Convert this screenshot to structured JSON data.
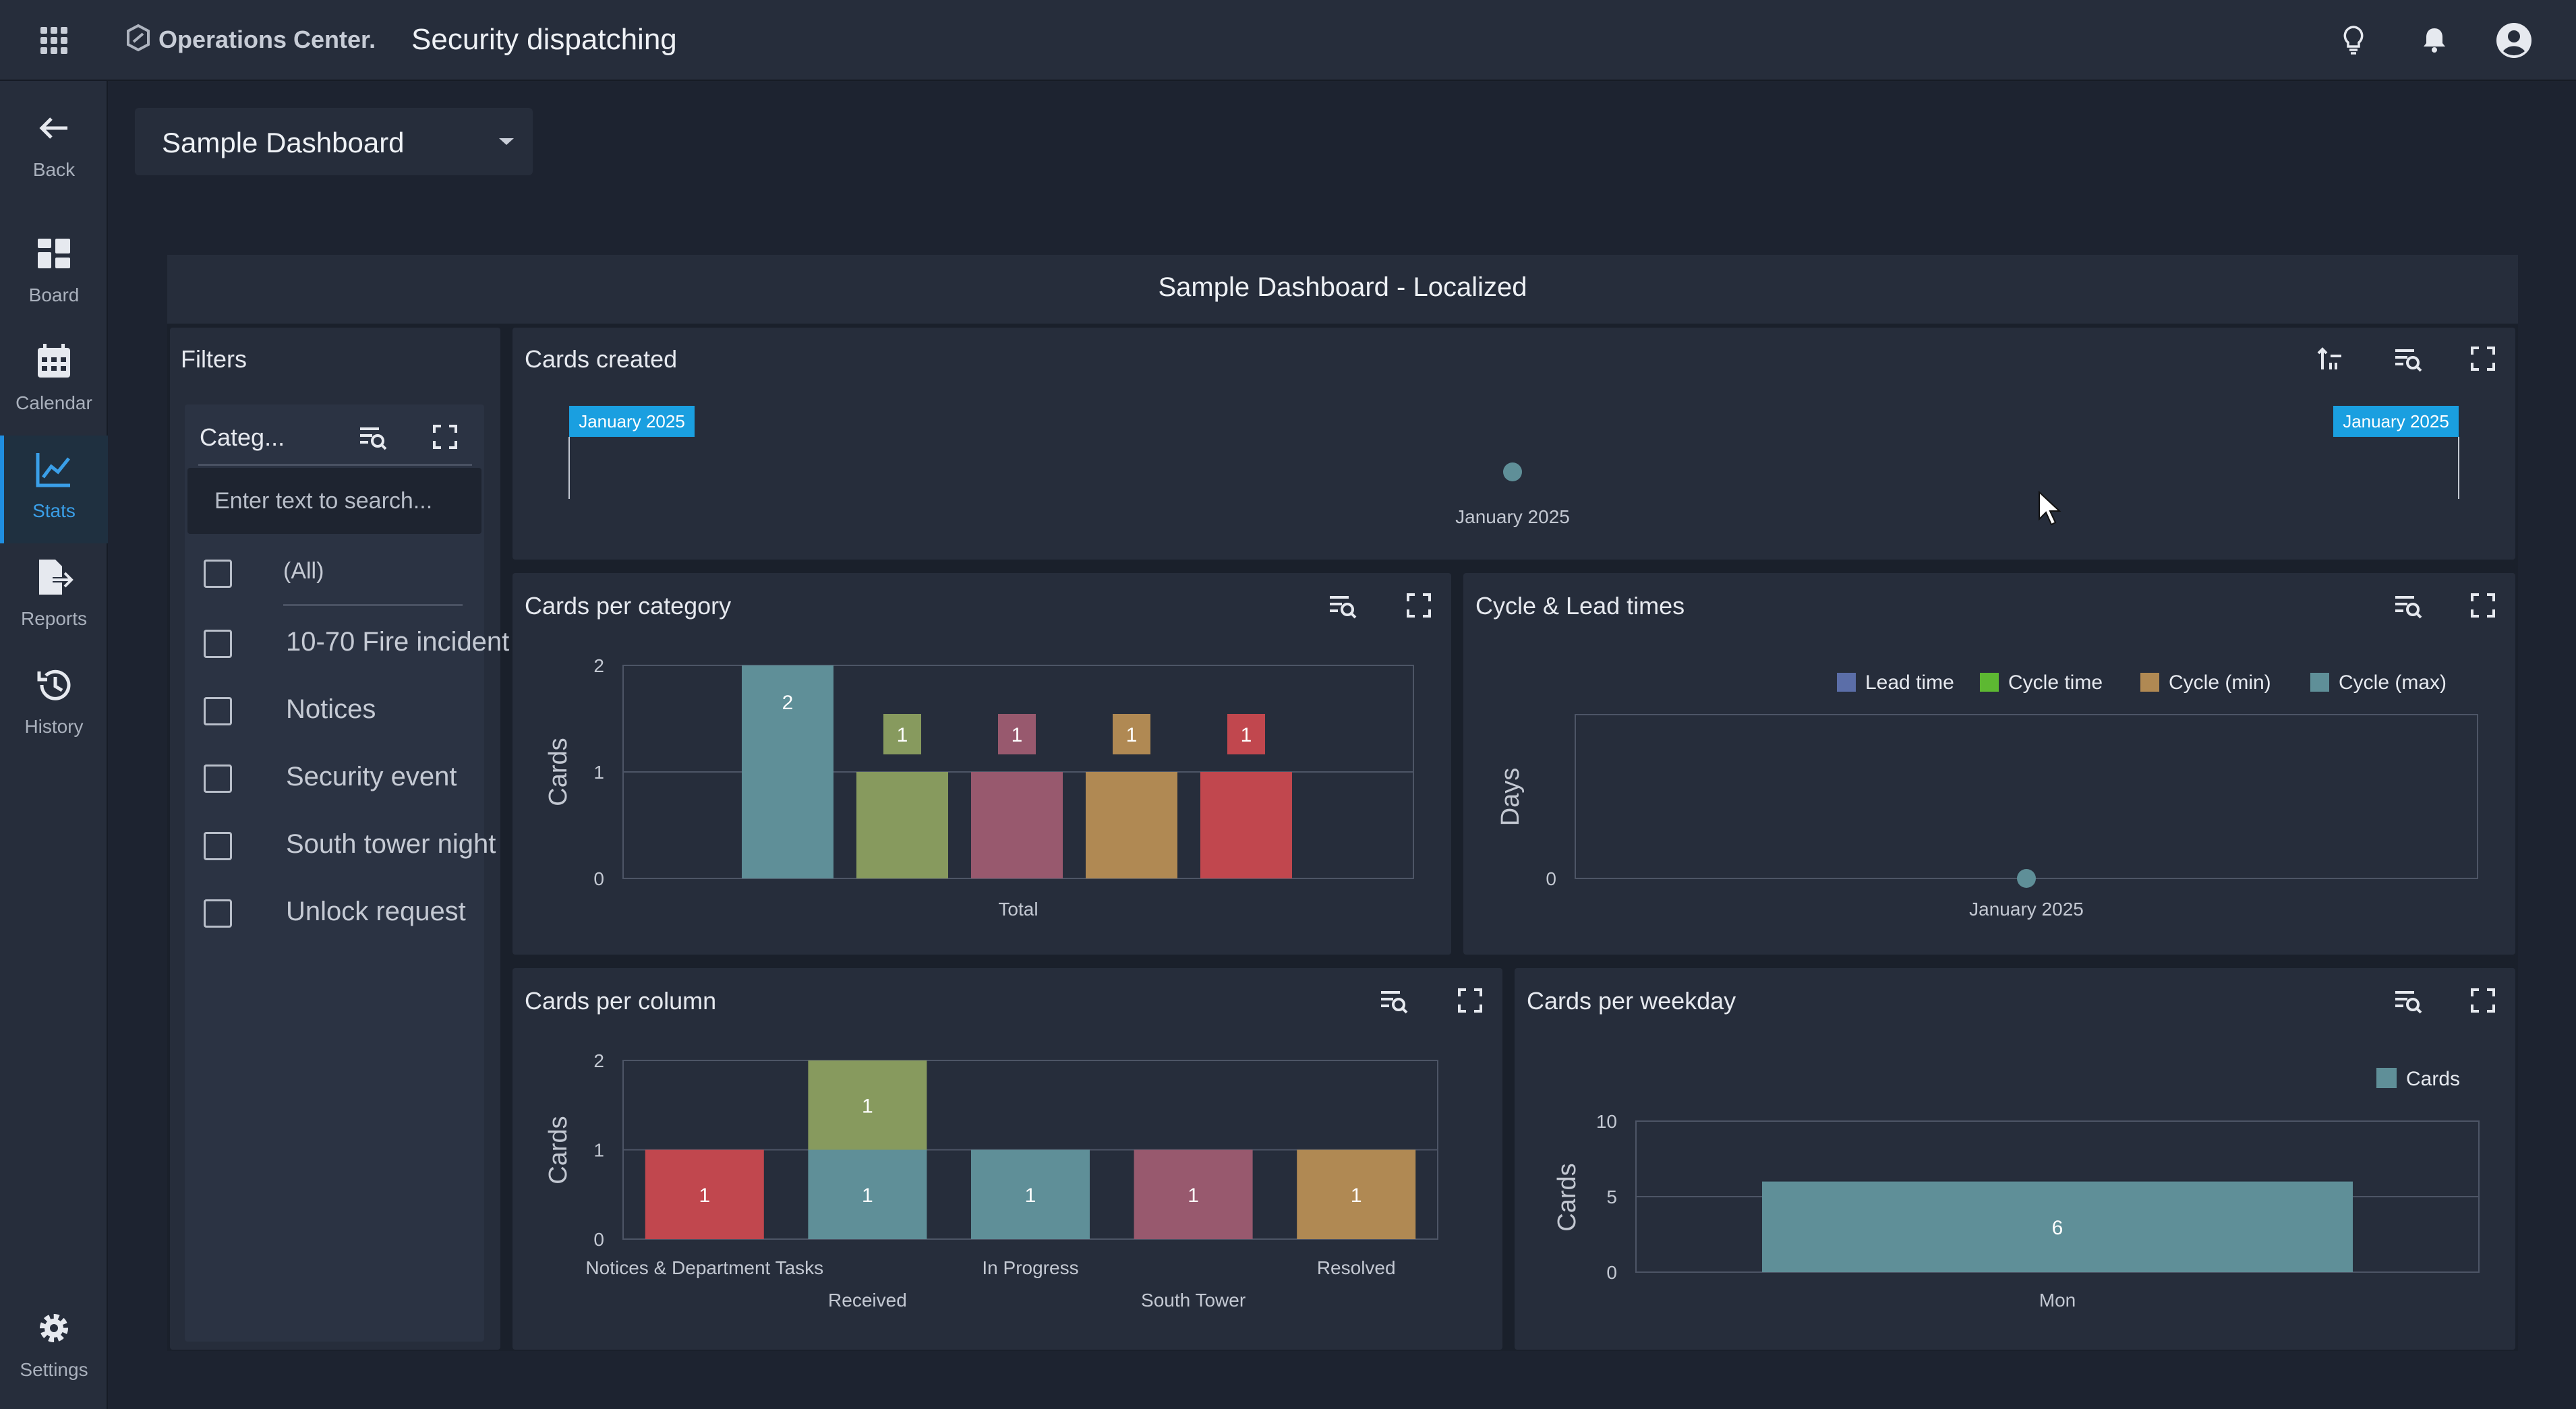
{
  "header": {
    "brand": "Operations Center.",
    "title": "Security dispatching"
  },
  "nav": {
    "back": "Back",
    "board": "Board",
    "calendar": "Calendar",
    "stats": "Stats",
    "reports": "Reports",
    "history": "History",
    "settings": "Settings"
  },
  "selector": {
    "value": "Sample Dashboard"
  },
  "dashboard": {
    "title": "Sample Dashboard - Localized"
  },
  "filters": {
    "title": "Filters",
    "box_title": "Categ...",
    "search_placeholder": "Enter text to search...",
    "items": [
      {
        "label": "(All)",
        "checked": false
      },
      {
        "label": "10-70 Fire incident",
        "checked": false
      },
      {
        "label": "Notices",
        "checked": false
      },
      {
        "label": "Security event",
        "checked": false
      },
      {
        "label": "South tower night",
        "checked": false
      },
      {
        "label": "Unlock request",
        "checked": false
      }
    ]
  },
  "panels": {
    "cards_created": "Cards created",
    "cards_per_category": "Cards per category",
    "cycle_lead": "Cycle & Lead times",
    "cards_per_column": "Cards per column",
    "cards_per_weekday": "Cards per weekday"
  },
  "colors": {
    "teal": "#5f8f98",
    "olive": "#879a5e",
    "mauve": "#98596e",
    "ochre": "#b08953",
    "red": "#c1474e",
    "blue": "#5b6ea8",
    "green": "#5db832",
    "accent": "#1a9fe0"
  },
  "chart_data": [
    {
      "id": "cards_created",
      "type": "scatter",
      "x": [
        "January 2025"
      ],
      "values": [
        1
      ],
      "range_start_label": "January 2025",
      "range_end_label": "January 2025"
    },
    {
      "id": "cards_per_category",
      "type": "bar",
      "categories": [
        "Total"
      ],
      "ylabel": "Cards",
      "ylim": [
        0,
        2
      ],
      "yticks": [
        0,
        1,
        2
      ],
      "series": [
        {
          "value": 2,
          "color": "#5f8f98"
        },
        {
          "value": 1,
          "color": "#879a5e"
        },
        {
          "value": 1,
          "color": "#98596e"
        },
        {
          "value": 1,
          "color": "#b08953"
        },
        {
          "value": 1,
          "color": "#c1474e"
        }
      ]
    },
    {
      "id": "cycle_lead",
      "type": "scatter",
      "categories": [
        "January 2025"
      ],
      "ylabel": "Days",
      "yticks": [
        0
      ],
      "legend": [
        {
          "name": "Lead time",
          "color": "#5b6ea8"
        },
        {
          "name": "Cycle time",
          "color": "#5db832"
        },
        {
          "name": "Cycle (min)",
          "color": "#b08953"
        },
        {
          "name": "Cycle (max)",
          "color": "#5f8f98"
        }
      ],
      "values": [
        0
      ]
    },
    {
      "id": "cards_per_column",
      "type": "bar",
      "stacked": true,
      "ylabel": "Cards",
      "ylim": [
        0,
        2
      ],
      "yticks": [
        0,
        1,
        2
      ],
      "categories": [
        "Notices & Department Tasks",
        "Received",
        "In Progress",
        "South Tower",
        "Resolved"
      ],
      "bars": [
        {
          "segments": [
            {
              "value": 1,
              "color": "#c1474e"
            }
          ]
        },
        {
          "segments": [
            {
              "value": 1,
              "color": "#5f8f98"
            },
            {
              "value": 1,
              "color": "#879a5e"
            }
          ]
        },
        {
          "segments": [
            {
              "value": 1,
              "color": "#5f8f98"
            }
          ]
        },
        {
          "segments": [
            {
              "value": 1,
              "color": "#98596e"
            }
          ]
        },
        {
          "segments": [
            {
              "value": 1,
              "color": "#b08953"
            }
          ]
        }
      ]
    },
    {
      "id": "cards_per_weekday",
      "type": "bar",
      "categories": [
        "Mon"
      ],
      "ylabel": "Cards",
      "ylim": [
        0,
        10
      ],
      "yticks": [
        0,
        5,
        10
      ],
      "legend": [
        {
          "name": "Cards",
          "color": "#5f8f98"
        }
      ],
      "values": [
        6
      ]
    }
  ]
}
